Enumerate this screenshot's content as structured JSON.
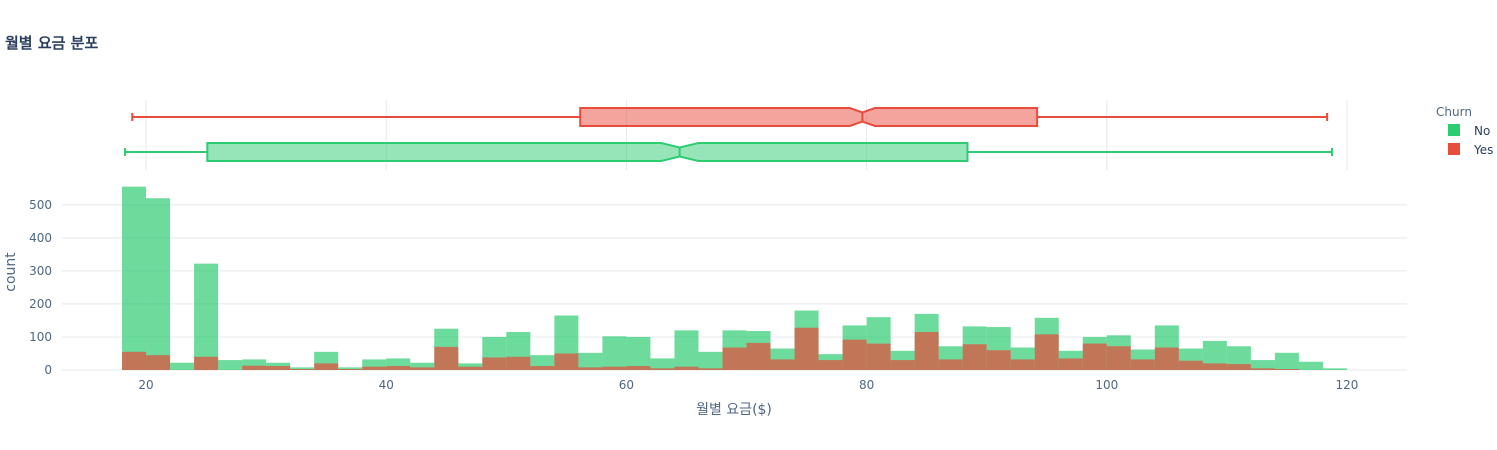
{
  "chart_data": {
    "title": "월별 요금 분포",
    "xlabel": "월별 요금($)",
    "ylabel": "count",
    "type": "bar",
    "barmode": "overlay",
    "xlim": [
      13,
      125
    ],
    "ylim": [
      0,
      560
    ],
    "x_ticks": [
      20,
      40,
      60,
      80,
      100,
      120
    ],
    "y_ticks": [
      0,
      100,
      200,
      300,
      400,
      500
    ],
    "grid": true,
    "legend": {
      "title": "Churn",
      "placement": "right",
      "entries": [
        "No",
        "Yes"
      ]
    },
    "colors": {
      "No": "#2ecc71",
      "Yes": "#e74c3c"
    },
    "bin_width": 2,
    "bin_start": 18,
    "series": [
      {
        "name": "No",
        "values": [
          555,
          520,
          22,
          322,
          30,
          32,
          22,
          8,
          55,
          8,
          32,
          35,
          22,
          125,
          20,
          100,
          115,
          45,
          165,
          52,
          102,
          100,
          35,
          120,
          55,
          120,
          118,
          65,
          180,
          48,
          135,
          160,
          58,
          170,
          72,
          132,
          130,
          68,
          158,
          58,
          100,
          105,
          62,
          135,
          65,
          88,
          72,
          30,
          52,
          25,
          5
        ]
      },
      {
        "name": "Yes",
        "values": [
          55,
          45,
          0,
          40,
          0,
          13,
          12,
          3,
          20,
          3,
          10,
          12,
          8,
          70,
          10,
          38,
          40,
          12,
          50,
          8,
          10,
          12,
          5,
          10,
          5,
          68,
          82,
          32,
          128,
          30,
          92,
          80,
          30,
          115,
          32,
          78,
          60,
          32,
          108,
          35,
          80,
          72,
          32,
          68,
          28,
          20,
          18,
          5,
          3,
          0,
          0
        ]
      }
    ],
    "boxplots": [
      {
        "name": "Yes",
        "min": 18.85,
        "q1": 56.15,
        "median": 79.65,
        "q3": 94.2,
        "max": 118.35,
        "notch_low": 78.6,
        "notch_high": 80.7
      },
      {
        "name": "No",
        "min": 18.25,
        "q1": 25.1,
        "median": 64.43,
        "q3": 88.4,
        "max": 118.75,
        "notch_low": 62.9,
        "notch_high": 66.0
      }
    ]
  }
}
